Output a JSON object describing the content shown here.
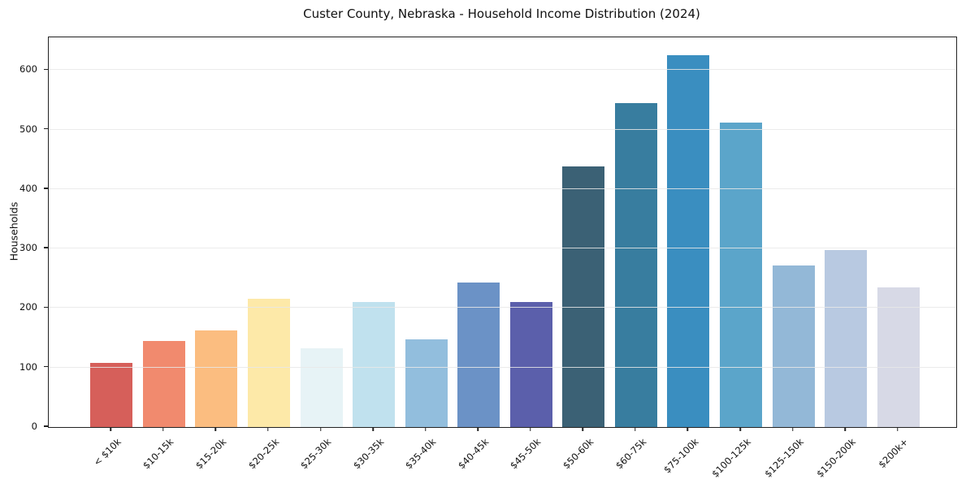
{
  "chart_data": {
    "type": "bar",
    "title": "Custer County, Nebraska - Household Income Distribution (2024)",
    "xlabel": "",
    "ylabel": "Households",
    "categories": [
      "< $10k",
      "$10-15k",
      "$15-20k",
      "$20-25k",
      "$25-30k",
      "$30-35k",
      "$35-40k",
      "$40-45k",
      "$45-50k",
      "$50-60k",
      "$60-75k",
      "$75-100k",
      "$100-125k",
      "$125-150k",
      "$150-200k",
      "$200k+"
    ],
    "values": [
      108,
      145,
      162,
      215,
      133,
      210,
      148,
      243,
      210,
      438,
      545,
      625,
      512,
      271,
      297,
      235
    ],
    "bar_colors": [
      "#d65f5a",
      "#f18a6e",
      "#fbbd80",
      "#fde9a8",
      "#e7f3f6",
      "#c0e1ee",
      "#92bedd",
      "#6b92c6",
      "#5b5fab",
      "#3b6175",
      "#387d9f",
      "#3a8ec0",
      "#5ba5ca",
      "#93b8d7",
      "#b8c9e1",
      "#d7d9e6"
    ],
    "yticks": [
      0,
      100,
      200,
      300,
      400,
      500,
      600
    ],
    "ylim": [
      0,
      655
    ],
    "grid": "horizontal",
    "legend": "none",
    "background_color": "#ffffff",
    "frame_color": "#222222",
    "gridline_color": "#e7e7e7"
  }
}
